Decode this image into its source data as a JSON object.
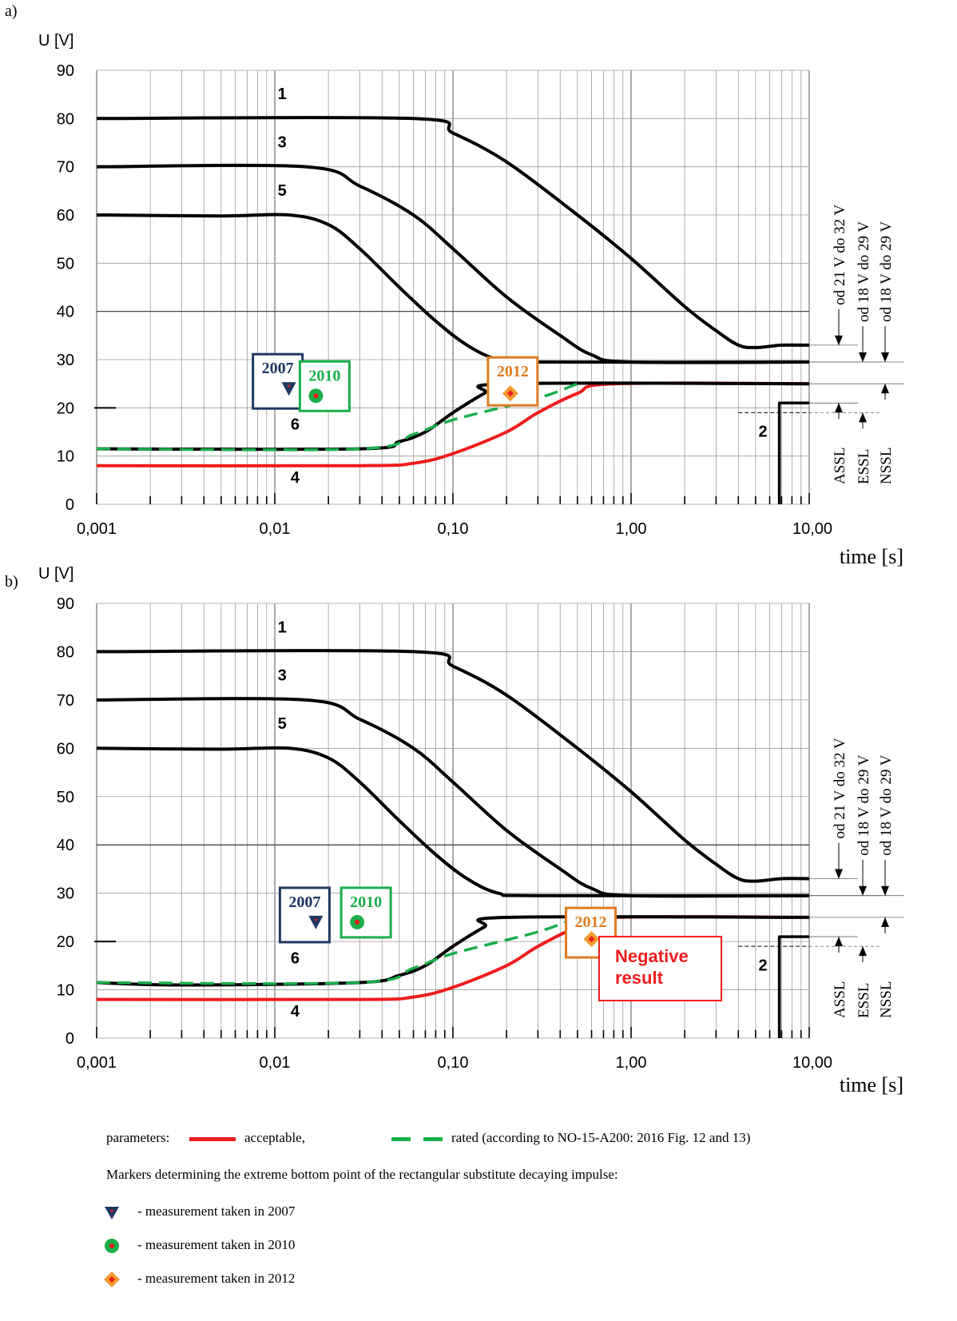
{
  "figure": {
    "panel_labels": [
      "a)",
      "b)"
    ],
    "legend": {
      "parameters_label": "parameters:",
      "acceptable_label": "acceptable,",
      "rated_label": "rated (according to NO-15-A200: 2016 Fig. 12 and 13)",
      "markers_caption": "Markers determining the extreme bottom point of the rectangular substitute decaying impulse:",
      "m2007": "- measurement taken in 2007",
      "m2010": "- measurement taken in 2010",
      "m2012": "- measurement taken in 2012"
    }
  },
  "chart_data": [
    {
      "type": "line",
      "panel": "a)",
      "ylabel": "U [V]",
      "xlabel": "time [s]",
      "xscale": "log",
      "xlim": [
        0.001,
        10
      ],
      "ylim": [
        0,
        90
      ],
      "yticks": [
        0,
        10,
        20,
        30,
        40,
        50,
        60,
        70,
        80,
        90
      ],
      "xtick_labels": [
        "0,001",
        "0,01",
        "0,10",
        "1,00",
        "10,00"
      ],
      "grid": true,
      "colors": {
        "curve": "#000000",
        "acceptable": "#ee1c1c",
        "rated": "#1aae4a",
        "m2007": "#1f3864",
        "m2010": "#1aae4a",
        "m2012": "#e07b20"
      },
      "series": [
        {
          "name": "1",
          "points": [
            [
              0.001,
              80
            ],
            [
              0.06,
              80
            ],
            [
              0.1,
              77
            ],
            [
              0.2,
              71
            ],
            [
              0.5,
              60
            ],
            [
              1,
              51
            ],
            [
              2,
              41
            ],
            [
              3,
              36
            ],
            [
              4,
              33
            ],
            [
              5,
              32.5
            ],
            [
              7,
              33
            ],
            [
              10,
              33
            ]
          ]
        },
        {
          "name": "3",
          "points": [
            [
              0.001,
              70
            ],
            [
              0.015,
              70
            ],
            [
              0.03,
              66
            ],
            [
              0.06,
              60
            ],
            [
              0.1,
              53
            ],
            [
              0.2,
              43
            ],
            [
              0.4,
              35
            ],
            [
              0.6,
              31
            ],
            [
              1,
              29.5
            ],
            [
              10,
              29.5
            ]
          ]
        },
        {
          "name": "5",
          "points": [
            [
              0.001,
              60
            ],
            [
              0.005,
              59.8
            ],
            [
              0.012,
              60
            ],
            [
              0.02,
              58
            ],
            [
              0.03,
              53
            ],
            [
              0.05,
              45
            ],
            [
              0.08,
              38
            ],
            [
              0.12,
              33
            ],
            [
              0.18,
              30
            ],
            [
              0.3,
              29.5
            ],
            [
              10,
              29.5
            ]
          ]
        },
        {
          "name": "6",
          "points": [
            [
              0.001,
              11.5
            ],
            [
              0.03,
              11.5
            ],
            [
              0.05,
              13
            ],
            [
              0.07,
              15
            ],
            [
              0.1,
              19
            ],
            [
              0.15,
              23
            ],
            [
              0.2,
              25
            ],
            [
              10,
              25
            ]
          ]
        },
        {
          "name": "4",
          "points": [
            [
              0.001,
              8
            ],
            [
              0.03,
              8
            ],
            [
              0.06,
              8.5
            ],
            [
              0.1,
              10.5
            ],
            [
              0.2,
              15
            ],
            [
              0.3,
              19
            ],
            [
              0.5,
              23
            ],
            [
              0.8,
              25
            ],
            [
              10,
              25
            ]
          ]
        },
        {
          "name": "rated",
          "points": [
            [
              0.001,
              11.5
            ],
            [
              0.03,
              11.5
            ],
            [
              0.06,
              14.5
            ],
            [
              0.1,
              17.5
            ],
            [
              0.3,
              22
            ],
            [
              0.5,
              25
            ]
          ]
        },
        {
          "name": "2",
          "points": [
            [
              6.8,
              0
            ],
            [
              6.8,
              21
            ],
            [
              10,
              21
            ]
          ]
        }
      ],
      "curve_labels": [
        {
          "text": "1",
          "x": 0.011,
          "y": 84
        },
        {
          "text": "3",
          "x": 0.011,
          "y": 74
        },
        {
          "text": "5",
          "x": 0.011,
          "y": 64
        },
        {
          "text": "6",
          "x": 0.013,
          "y": 15.5
        },
        {
          "text": "4",
          "x": 0.013,
          "y": 4.5
        },
        {
          "text": "2",
          "x": 5.5,
          "y": 14
        }
      ],
      "ranges": {
        "labels": [
          "od 21 V do 32 V",
          "od 18 V do 29 V",
          "od 18 V do 29 V"
        ],
        "bottom_labels": [
          "ASSL",
          "ESSL",
          "NSSL"
        ],
        "lows": [
          21,
          19,
          25
        ],
        "highs": [
          33,
          29.5,
          29.5
        ]
      },
      "markers": [
        {
          "year": "2007",
          "shape": "triangle",
          "x": 0.012,
          "y": 24
        },
        {
          "year": "2010",
          "shape": "circle",
          "x": 0.017,
          "y": 22.5
        },
        {
          "year": "2012",
          "shape": "diamond",
          "x": 0.21,
          "y": 23
        }
      ],
      "note": ""
    },
    {
      "type": "line",
      "panel": "b)",
      "ylabel": "U [V]",
      "xlabel": "time [s]",
      "xscale": "log",
      "xlim": [
        0.001,
        10
      ],
      "ylim": [
        0,
        90
      ],
      "yticks": [
        0,
        10,
        20,
        30,
        40,
        50,
        60,
        70,
        80,
        90
      ],
      "xtick_labels": [
        "0,001",
        "0,01",
        "0,10",
        "1,00",
        "10,00"
      ],
      "grid": true,
      "colors": {
        "curve": "#000000",
        "acceptable": "#ee1c1c",
        "rated": "#1aae4a",
        "m2007": "#1f3864",
        "m2010": "#1aae4a",
        "m2012": "#e07b20"
      },
      "series": [
        {
          "name": "1",
          "points": [
            [
              0.001,
              80
            ],
            [
              0.06,
              80
            ],
            [
              0.1,
              77
            ],
            [
              0.2,
              71
            ],
            [
              0.5,
              60
            ],
            [
              1,
              51
            ],
            [
              2,
              41
            ],
            [
              3,
              36
            ],
            [
              4,
              33
            ],
            [
              5,
              32.5
            ],
            [
              7,
              33
            ],
            [
              10,
              33
            ]
          ]
        },
        {
          "name": "3",
          "points": [
            [
              0.001,
              70
            ],
            [
              0.015,
              70
            ],
            [
              0.03,
              66
            ],
            [
              0.06,
              60
            ],
            [
              0.1,
              53
            ],
            [
              0.2,
              43
            ],
            [
              0.4,
              35
            ],
            [
              0.6,
              31
            ],
            [
              1,
              29.5
            ],
            [
              10,
              29.5
            ]
          ]
        },
        {
          "name": "5",
          "points": [
            [
              0.001,
              60
            ],
            [
              0.005,
              59.8
            ],
            [
              0.012,
              60
            ],
            [
              0.02,
              58
            ],
            [
              0.03,
              53
            ],
            [
              0.05,
              45
            ],
            [
              0.08,
              38
            ],
            [
              0.12,
              33
            ],
            [
              0.18,
              30
            ],
            [
              0.3,
              29.5
            ],
            [
              10,
              29.5
            ]
          ]
        },
        {
          "name": "6",
          "points": [
            [
              0.001,
              11.5
            ],
            [
              0.003,
              11
            ],
            [
              0.03,
              11.5
            ],
            [
              0.05,
              13
            ],
            [
              0.07,
              15
            ],
            [
              0.1,
              19
            ],
            [
              0.15,
              23
            ],
            [
              0.2,
              25
            ],
            [
              10,
              25
            ]
          ]
        },
        {
          "name": "4",
          "points": [
            [
              0.001,
              8
            ],
            [
              0.03,
              8
            ],
            [
              0.06,
              8.5
            ],
            [
              0.1,
              10.5
            ],
            [
              0.2,
              15
            ],
            [
              0.3,
              19
            ],
            [
              0.5,
              23
            ],
            [
              0.8,
              25
            ],
            [
              10,
              25
            ]
          ]
        },
        {
          "name": "rated",
          "points": [
            [
              0.001,
              11.5
            ],
            [
              0.03,
              11.5
            ],
            [
              0.06,
              14.5
            ],
            [
              0.1,
              17.5
            ],
            [
              0.3,
              22
            ],
            [
              0.5,
              25
            ]
          ]
        },
        {
          "name": "2",
          "points": [
            [
              6.8,
              0
            ],
            [
              6.8,
              21
            ],
            [
              10,
              21
            ]
          ]
        }
      ],
      "curve_labels": [
        {
          "text": "1",
          "x": 0.011,
          "y": 84
        },
        {
          "text": "3",
          "x": 0.011,
          "y": 74
        },
        {
          "text": "5",
          "x": 0.011,
          "y": 64
        },
        {
          "text": "6",
          "x": 0.013,
          "y": 15.5
        },
        {
          "text": "4",
          "x": 0.013,
          "y": 4.5
        },
        {
          "text": "2",
          "x": 5.5,
          "y": 14
        }
      ],
      "ranges": {
        "labels": [
          "od 21 V do 32 V",
          "od 18 V do 29 V",
          "od 18 V do 29 V"
        ],
        "bottom_labels": [
          "ASSL",
          "ESSL",
          "NSSL"
        ],
        "lows": [
          21,
          19,
          25
        ],
        "highs": [
          33,
          29.5,
          29.5
        ]
      },
      "markers": [
        {
          "year": "2007",
          "shape": "triangle",
          "x": 0.017,
          "y": 24
        },
        {
          "year": "2010",
          "shape": "circle",
          "x": 0.029,
          "y": 24
        },
        {
          "year": "2012",
          "shape": "diamond",
          "x": 0.6,
          "y": 20.5
        }
      ],
      "note": "Negative result"
    }
  ]
}
